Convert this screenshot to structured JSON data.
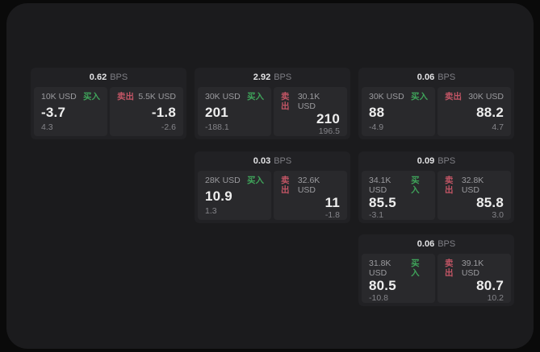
{
  "labels": {
    "buy": "买入",
    "sell": "卖出",
    "bps_unit": "BPS"
  },
  "colors": {
    "outer_bg": "#0a0a0a",
    "page_bg": "#1b1b1d",
    "card_bg": "#212124",
    "panel_bg": "#29292c",
    "buy_accent": "#3fa35a",
    "sell_accent": "#c25565"
  },
  "cards": [
    {
      "bps": "0.62",
      "buy": {
        "amount": "10K USD",
        "price": "-3.7",
        "delta": "4.3"
      },
      "sell": {
        "amount": "5.5K USD",
        "price": "-1.8",
        "delta": "-2.6"
      }
    },
    {
      "bps": "2.92",
      "buy": {
        "amount": "30K USD",
        "price": "201",
        "delta": "-188.1"
      },
      "sell": {
        "amount": "30.1K USD",
        "price": "210",
        "delta": "196.5"
      }
    },
    {
      "bps": "0.06",
      "buy": {
        "amount": "30K USD",
        "price": "88",
        "delta": "-4.9"
      },
      "sell": {
        "amount": "30K USD",
        "price": "88.2",
        "delta": "4.7"
      }
    },
    {
      "bps": "0.03",
      "buy": {
        "amount": "28K USD",
        "price": "10.9",
        "delta": "1.3"
      },
      "sell": {
        "amount": "32.6K USD",
        "price": "11",
        "delta": "-1.8"
      }
    },
    {
      "bps": "0.09",
      "buy": {
        "amount": "34.1K USD",
        "price": "85.5",
        "delta": "-3.1"
      },
      "sell": {
        "amount": "32.8K USD",
        "price": "85.8",
        "delta": "3.0"
      }
    },
    {
      "bps": "0.06",
      "buy": {
        "amount": "31.8K USD",
        "price": "80.5",
        "delta": "-10.8"
      },
      "sell": {
        "amount": "39.1K USD",
        "price": "80.7",
        "delta": "10.2"
      }
    }
  ]
}
